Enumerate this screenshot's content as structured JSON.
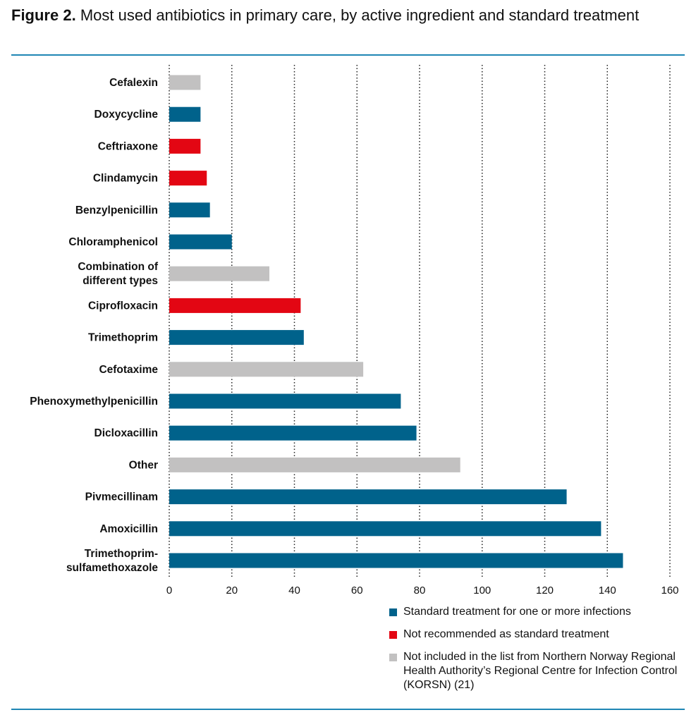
{
  "title": {
    "label": "Figure 2.",
    "text": "Most used antibiotics in primary care, by active ingredient and standard treatment"
  },
  "colors": {
    "standard": "#00628b",
    "not_recommended": "#e30613",
    "not_included": "#c2c1c1",
    "rule": "#1f86b4"
  },
  "chart_data": {
    "type": "bar",
    "orientation": "horizontal",
    "categories": [
      "Cefalexin",
      "Doxycycline",
      "Ceftriaxone",
      "Clindamycin",
      "Benzylpenicillin",
      "Chloramphenicol",
      "Combination of different types",
      "Ciprofloxacin",
      "Trimethoprim",
      "Cefotaxime",
      "Phenoxymethylpenicillin",
      "Dicloxacillin",
      "Other",
      "Pivmecillinam",
      "Amoxicillin",
      "Trimethoprim-sulfamethoxazole"
    ],
    "category_lines": [
      [
        "Cefalexin"
      ],
      [
        "Doxycycline"
      ],
      [
        "Ceftriaxone"
      ],
      [
        "Clindamycin"
      ],
      [
        "Benzylpenicillin"
      ],
      [
        "Chloramphenicol"
      ],
      [
        "Combination of",
        "different types"
      ],
      [
        "Ciprofloxacin"
      ],
      [
        "Trimethoprim"
      ],
      [
        "Cefotaxime"
      ],
      [
        "Phenoxymethylpenicillin"
      ],
      [
        "Dicloxacillin"
      ],
      [
        "Other"
      ],
      [
        "Pivmecillinam"
      ],
      [
        "Amoxicillin"
      ],
      [
        "Trimethoprim-",
        "sulfamethoxazole"
      ]
    ],
    "values": [
      10,
      10,
      10,
      12,
      13,
      20,
      32,
      42,
      43,
      62,
      74,
      79,
      93,
      127,
      138,
      145
    ],
    "groups": [
      "not_included",
      "standard",
      "not_recommended",
      "not_recommended",
      "standard",
      "standard",
      "not_included",
      "not_recommended",
      "standard",
      "not_included",
      "standard",
      "standard",
      "not_included",
      "standard",
      "standard",
      "standard"
    ],
    "xlim": [
      0,
      160
    ],
    "xticks": [
      0,
      20,
      40,
      60,
      80,
      100,
      120,
      140,
      160
    ],
    "grid": "vertical dotted",
    "legend_placement": "bottom-right",
    "legend": [
      {
        "key": "standard",
        "label": "Standard treatment for one or more infections"
      },
      {
        "key": "not_recommended",
        "label": "Not recommended as standard treatment"
      },
      {
        "key": "not_included",
        "label": "Not included in the list from Northern Norway Regional Health Authority’s Regional Centre for Infection Control (KORSN) (21)"
      }
    ]
  }
}
